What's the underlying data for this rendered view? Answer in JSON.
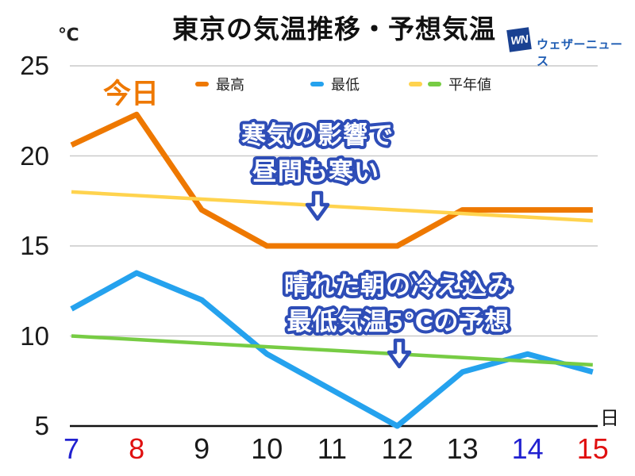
{
  "title": "東京の気温推移・予想気温",
  "unit_label": "℃",
  "day_axis_label": "日",
  "today_label": "今日",
  "logo": {
    "mark": "WN",
    "text": "ウェザーニュース",
    "box_color": "#1a4191",
    "text_color": "#1e5cb3"
  },
  "legend": [
    {
      "label": "最高",
      "colors": [
        "#ee7800"
      ]
    },
    {
      "label": "最低",
      "colors": [
        "#25a2ee"
      ]
    },
    {
      "label": "平年値",
      "colors": [
        "#ffd34e",
        "#77cc44"
      ]
    }
  ],
  "annotations": [
    {
      "line1": "寒気の影響で",
      "line2": "昼間も寒い"
    },
    {
      "line1": "晴れた朝の冷え込み",
      "line2": "最低気温5℃の予想"
    }
  ],
  "chart_data": {
    "type": "line",
    "title": "東京の気温推移・予想気温",
    "xlabel": "日",
    "ylabel": "℃",
    "x": [
      7,
      8,
      9,
      10,
      11,
      12,
      13,
      14,
      15
    ],
    "x_label_colors": [
      "#2121d0",
      "#e01010",
      "#1a1a1a",
      "#1a1a1a",
      "#1a1a1a",
      "#1a1a1a",
      "#1a1a1a",
      "#2121d0",
      "#e01010"
    ],
    "ylim": [
      5,
      25
    ],
    "yticks": [
      25,
      20,
      15,
      10,
      5
    ],
    "grid": true,
    "legend_position": "top",
    "series": [
      {
        "name": "最高",
        "values": [
          20.6,
          22.3,
          17,
          15,
          15,
          15,
          17,
          17,
          17
        ],
        "color": "#ee7800",
        "width": 7
      },
      {
        "name": "最低",
        "values": [
          11.5,
          13.5,
          12,
          9,
          7,
          5,
          8,
          9,
          8
        ],
        "color": "#25a2ee",
        "width": 7
      },
      {
        "name": "平年値(最高)",
        "values": [
          18,
          17.8,
          17.6,
          17.4,
          17.2,
          17,
          16.8,
          16.6,
          16.4
        ],
        "color": "#ffd34e",
        "width": 4.5
      },
      {
        "name": "平年値(最低)",
        "values": [
          10,
          9.8,
          9.6,
          9.4,
          9.2,
          9,
          8.8,
          8.6,
          8.4
        ],
        "color": "#77cc44",
        "width": 4.5
      }
    ]
  }
}
